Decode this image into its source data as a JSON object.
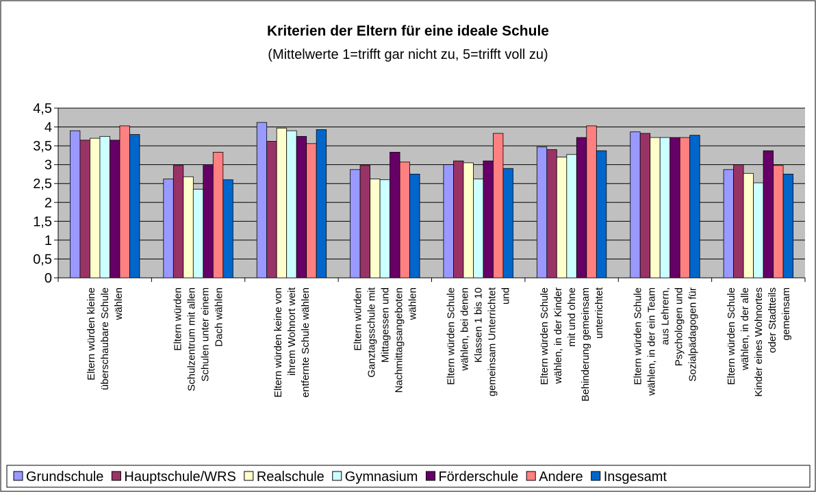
{
  "chart_data": {
    "type": "bar",
    "title": "Kriterien der Eltern für eine ideale Schule",
    "subtitle": "(Mittelwerte 1=trifft gar nicht zu, 5=trifft voll zu)",
    "categories": [
      "Eltern würden kleine überschaubare Schule wählen",
      "Eltern würden Schulzentrum mit allen Schulen unter einem Dach wählen",
      "Eltern würden keine von ihrem Wohnort weit entfernte Schule wählen",
      "Eltern würden Ganztagsschule mit Mittagessen und Nachmittagsangeboten wählen",
      "Eltern würden Schule wählen, bei denen Klassen 1 bis 10 gemeinsam Unterrichtet und",
      "Eltern würden Schule wählen, in der Kinder mit und ohne Behinderung gemeinsam unterrichtet",
      "Eltern würden Schule wählen, in der ein Team aus Lehrern, Psychologen und Sozialpädagogen für",
      "Eltern würden Schule wählen, in der alle Kinder eines Wohnortes oder Stadtteils gemeinsam"
    ],
    "series": [
      {
        "name": "Grundschule",
        "color": "#9999ff",
        "values": [
          3.9,
          2.62,
          4.12,
          2.87,
          3.0,
          3.47,
          3.87,
          2.87
        ]
      },
      {
        "name": "Hauptschule/WRS",
        "color": "#993366",
        "values": [
          3.65,
          2.98,
          3.62,
          2.98,
          3.1,
          3.4,
          3.83,
          3.0
        ]
      },
      {
        "name": "Realschule",
        "color": "#ffffcc",
        "values": [
          3.7,
          2.68,
          3.97,
          2.62,
          3.05,
          3.2,
          3.72,
          2.77
        ]
      },
      {
        "name": "Gymnasium",
        "color": "#ccffff",
        "values": [
          3.75,
          2.35,
          3.9,
          2.6,
          2.62,
          3.27,
          3.72,
          2.52
        ]
      },
      {
        "name": "Förderschule",
        "color": "#660066",
        "values": [
          3.65,
          2.98,
          3.75,
          3.33,
          3.1,
          3.72,
          3.72,
          3.37
        ]
      },
      {
        "name": "Andere",
        "color": "#ff8080",
        "values": [
          4.03,
          3.33,
          3.56,
          3.07,
          3.83,
          4.03,
          3.72,
          2.98
        ]
      },
      {
        "name": "Insgesamt",
        "color": "#0066cc",
        "values": [
          3.8,
          2.6,
          3.93,
          2.75,
          2.9,
          3.37,
          3.78,
          2.75
        ]
      }
    ],
    "ylim": [
      0,
      4.5
    ],
    "yticks": [
      0,
      {
        "value": 0.5,
        "label": "0,5"
      },
      1,
      {
        "value": 1.5,
        "label": "1,5"
      },
      2,
      {
        "value": 2.5,
        "label": "2,5"
      },
      3,
      {
        "value": 3.5,
        "label": "3,5"
      },
      4,
      {
        "value": 4.5,
        "label": "4,5"
      }
    ],
    "grid": true,
    "legend": "bottom"
  }
}
